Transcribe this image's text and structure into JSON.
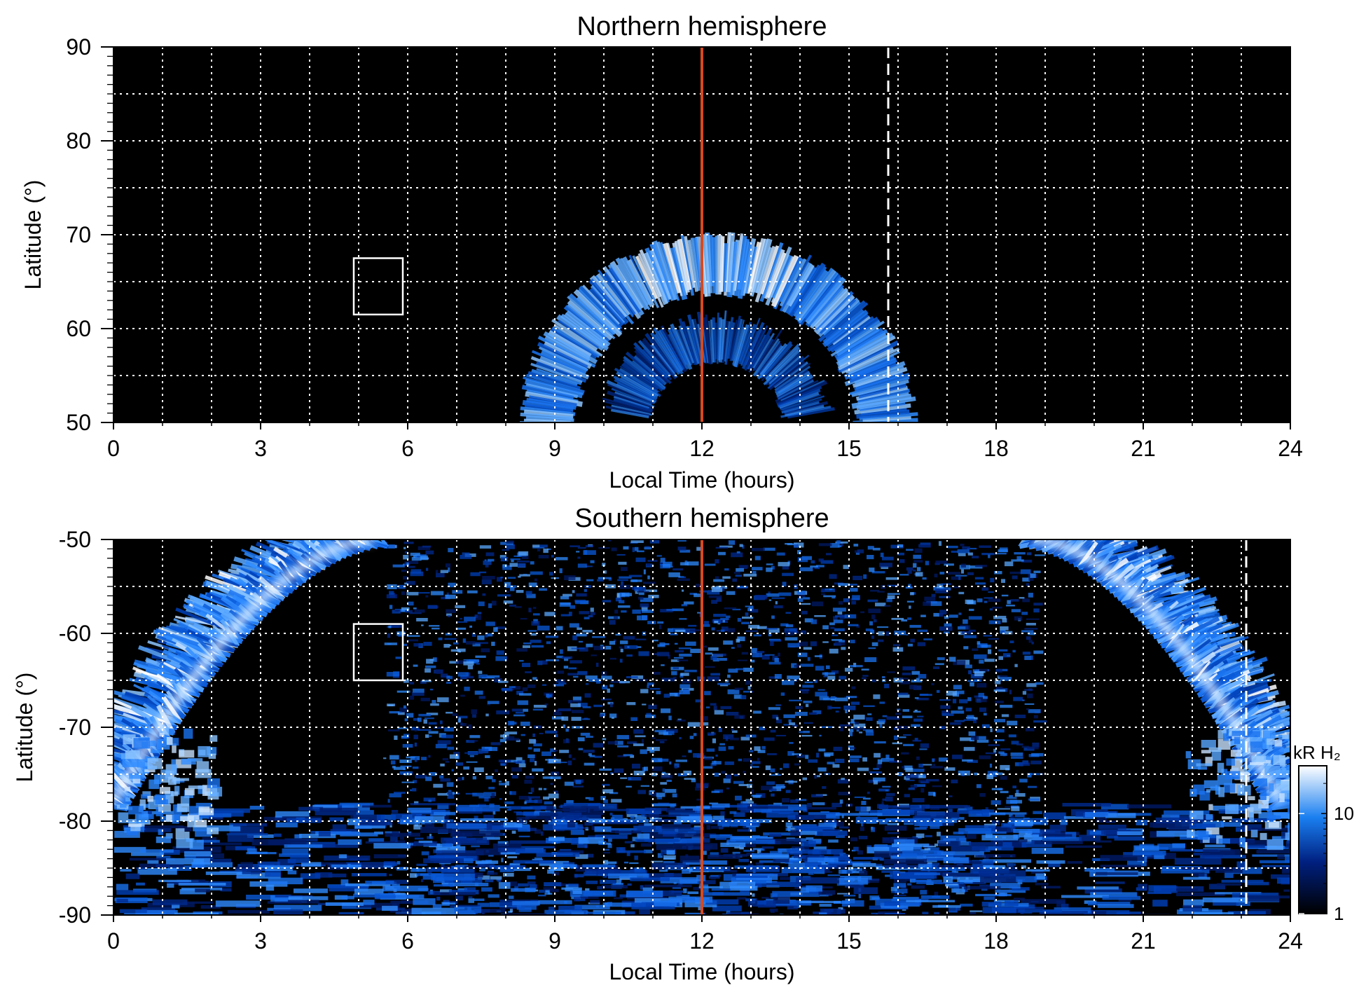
{
  "chart_data": [
    {
      "type": "heatmap",
      "title": "Northern hemisphere",
      "xlabel": "Local Time (hours)",
      "ylabel": "Latitude (°)",
      "xlim": [
        0,
        24
      ],
      "ylim": [
        50,
        90
      ],
      "xticks": [
        "0",
        "3",
        "6",
        "9",
        "12",
        "15",
        "18",
        "21",
        "24"
      ],
      "yticks": [
        "50",
        "60",
        "70",
        "80",
        "90"
      ],
      "grid": true,
      "red_line_local_time": 12,
      "dashed_line_local_time": 15.8,
      "box": {
        "x": [
          4.9,
          5.9
        ],
        "y": [
          61.5,
          67.5
        ]
      },
      "emission": {
        "shape": "arc",
        "center_local_time": 12.3,
        "outer_radius_hours": 4.0,
        "peak_latitude": 68,
        "notes": "main oval arc spanning local time 8.5 to 16.3"
      }
    },
    {
      "type": "heatmap",
      "title": "Southern hemisphere",
      "xlabel": "Local Time (hours)",
      "ylabel": "Latitude (°)",
      "xlim": [
        0,
        24
      ],
      "ylim": [
        -90,
        -50
      ],
      "xticks": [
        "0",
        "3",
        "6",
        "9",
        "12",
        "15",
        "18",
        "21",
        "24"
      ],
      "yticks": [
        "-50",
        "-60",
        "-70",
        "-80",
        "-90"
      ],
      "grid": true,
      "red_line_local_time": 12,
      "dashed_line_local_time": 23.1,
      "box": {
        "x": [
          4.9,
          5.9
        ],
        "y": [
          -65,
          -59
        ]
      },
      "colorbar": {
        "label": "kR H₂",
        "ticks": [
          "1",
          "10"
        ],
        "range": [
          1,
          30
        ],
        "scale": "log"
      }
    }
  ],
  "colors": {
    "background": "#000000",
    "red_line": "#d64a1f",
    "grid": "#ffffff",
    "emission_low": "#002a8f",
    "emission_mid": "#1a80ff",
    "emission_high": "#ffffff"
  }
}
